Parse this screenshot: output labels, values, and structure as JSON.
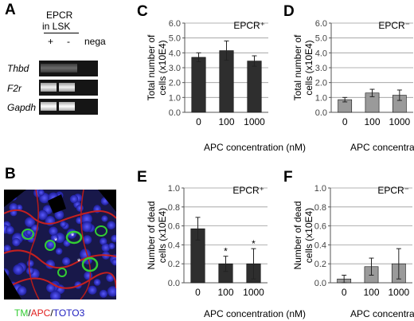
{
  "panels": {
    "A": "A",
    "B": "B",
    "C": "C",
    "D": "D",
    "E": "E",
    "F": "F"
  },
  "gel": {
    "header_line1": "EPCR",
    "header_line2": "in LSK",
    "lanes": [
      "+",
      "-",
      "nega"
    ],
    "genes": [
      "Thbd",
      "F2r",
      "Gapdh"
    ]
  },
  "micro": {
    "stain_tm": "TM",
    "stain_apc": "APC",
    "stain_toto": "TOTO3",
    "sep": "/",
    "star": "*",
    "colors": {
      "tm": "#33cc33",
      "apc": "#e0201e",
      "toto": "#2020c0"
    }
  },
  "chart_data": [
    {
      "id": "C",
      "type": "bar",
      "title": "EPCR⁺",
      "categories": [
        "0",
        "100",
        "1000"
      ],
      "values": [
        3.7,
        4.15,
        3.45
      ],
      "errors": [
        0.3,
        0.65,
        0.35
      ],
      "ylabel_lines": [
        "Total number of",
        "cells (x10E4)"
      ],
      "xlabel": "APC concentration (nM)",
      "ylim": [
        0,
        6
      ],
      "yticks": [
        "0.0",
        "1.0",
        "2.0",
        "3.0",
        "4.0",
        "5.0",
        "6.0"
      ],
      "bar_color": "#2e2e2e",
      "stars": [
        "",
        "",
        ""
      ]
    },
    {
      "id": "D",
      "type": "bar",
      "title": "EPCR⁻",
      "categories": [
        "0",
        "100",
        "1000"
      ],
      "values": [
        0.85,
        1.3,
        1.15
      ],
      "errors": [
        0.15,
        0.25,
        0.35
      ],
      "ylabel_lines": [
        "Total number of",
        "cells (x10E4)"
      ],
      "xlabel": "APC concentration (nM)",
      "ylim": [
        0,
        6
      ],
      "yticks": [
        "0.0",
        "1.0",
        "2.0",
        "3.0",
        "4.0",
        "5.0",
        "6.0"
      ],
      "bar_color": "#9a9a9a",
      "stars": [
        "",
        "",
        ""
      ]
    },
    {
      "id": "E",
      "type": "bar",
      "title": "EPCR⁺",
      "categories": [
        "0",
        "100",
        "1000"
      ],
      "values": [
        0.57,
        0.2,
        0.2
      ],
      "errors": [
        0.12,
        0.08,
        0.16
      ],
      "ylabel_lines": [
        "Number of dead",
        "cells (x10E4)"
      ],
      "xlabel": "APC concentration (nM)",
      "ylim": [
        0,
        1
      ],
      "yticks": [
        "0.0",
        "0.2",
        "0.4",
        "0.6",
        "0.8",
        "1.0"
      ],
      "bar_color": "#2e2e2e",
      "stars": [
        "",
        "*",
        "*"
      ]
    },
    {
      "id": "F",
      "type": "bar",
      "title": "EPCR⁻",
      "categories": [
        "0",
        "100",
        "1000"
      ],
      "values": [
        0.04,
        0.17,
        0.2
      ],
      "errors": [
        0.04,
        0.09,
        0.16
      ],
      "ylabel_lines": [
        "Number of dead",
        "cells (x10E4)"
      ],
      "xlabel": "APC concentration (nM)",
      "ylim": [
        0,
        1
      ],
      "yticks": [
        "0.0",
        "0.2",
        "0.4",
        "0.6",
        "0.8",
        "1.0"
      ],
      "bar_color": "#9a9a9a",
      "stars": [
        "",
        "",
        ""
      ]
    }
  ]
}
